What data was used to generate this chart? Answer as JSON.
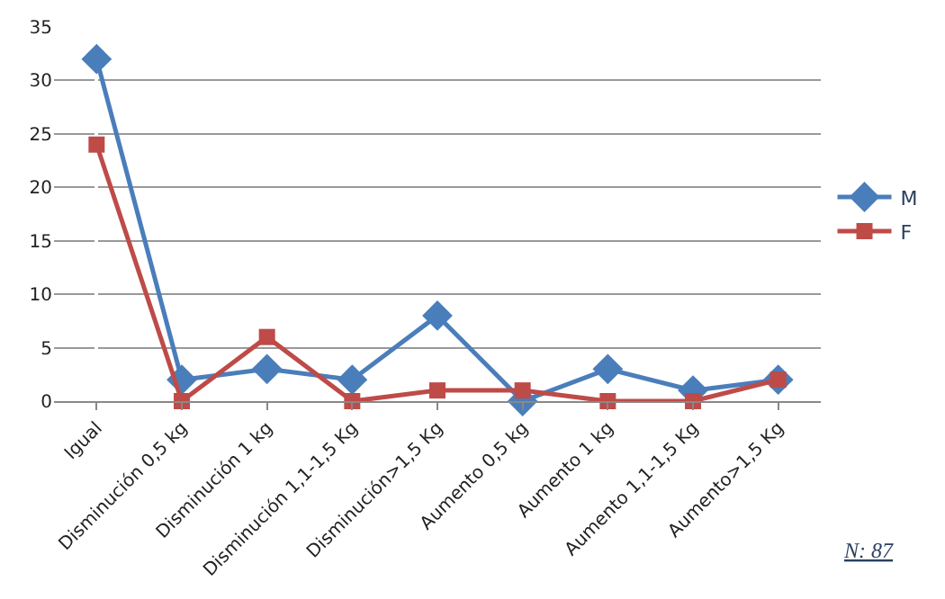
{
  "chart_data": {
    "type": "line",
    "categories": [
      "Igual",
      "Disminución 0,5 kg",
      "Disminución 1 kg",
      "Disminución 1,1-1,5 Kg",
      "Disminución>1,5 Kg",
      "Aumento 0,5 kg",
      "Aumento 1 kg",
      "Aumento 1,1-1,5 Kg",
      "Aumento>1,5 Kg"
    ],
    "series": [
      {
        "name": "M",
        "color": "#4a7ebb",
        "marker": "diamond",
        "values": [
          32,
          2,
          3,
          2,
          8,
          0,
          3,
          1,
          2
        ]
      },
      {
        "name": "F",
        "color": "#be4b48",
        "marker": "square",
        "values": [
          24,
          0,
          6,
          0,
          1,
          1,
          0,
          0,
          2
        ]
      }
    ],
    "ylim": [
      0,
      35
    ],
    "yticks": [
      0,
      5,
      10,
      15,
      20,
      25,
      30,
      35
    ],
    "grid": "y",
    "legend": "right",
    "annotations": [
      "N: 87"
    ]
  }
}
